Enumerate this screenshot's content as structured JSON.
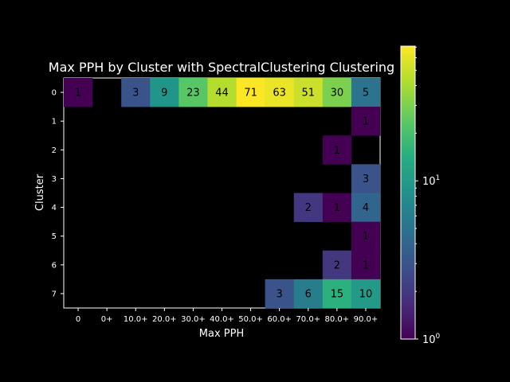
{
  "chart_data": {
    "type": "heatmap",
    "title": "Max PPH by Cluster with SpectralClustering Clustering",
    "xlabel": "Max PPH",
    "ylabel": "Cluster",
    "x_categories": [
      "0",
      "0+",
      "10.0+",
      "20.0+",
      "30.0+",
      "40.0+",
      "50.0+",
      "60.0+",
      "70.0+",
      "80.0+",
      "90.0+"
    ],
    "y_categories": [
      "0",
      "1",
      "2",
      "3",
      "4",
      "5",
      "6",
      "7"
    ],
    "values": [
      [
        1,
        null,
        3,
        9,
        23,
        44,
        71,
        63,
        51,
        30,
        5
      ],
      [
        null,
        null,
        null,
        null,
        null,
        null,
        null,
        null,
        null,
        null,
        1
      ],
      [
        null,
        null,
        null,
        null,
        null,
        null,
        null,
        null,
        null,
        1,
        null
      ],
      [
        null,
        null,
        null,
        null,
        null,
        null,
        null,
        null,
        null,
        null,
        3
      ],
      [
        null,
        null,
        null,
        null,
        null,
        null,
        null,
        null,
        2,
        1,
        4
      ],
      [
        null,
        null,
        null,
        null,
        null,
        null,
        null,
        null,
        null,
        null,
        1
      ],
      [
        null,
        null,
        null,
        null,
        null,
        null,
        null,
        null,
        null,
        2,
        1
      ],
      [
        null,
        null,
        null,
        null,
        null,
        null,
        null,
        3,
        6,
        15,
        10
      ]
    ],
    "color_scale": "log",
    "colormap": "viridis",
    "color_range": [
      1,
      71
    ],
    "colorbar": {
      "ticks": [
        {
          "value": 1,
          "base": "10",
          "exp": "0"
        },
        {
          "value": 10,
          "base": "10",
          "exp": "1"
        }
      ]
    },
    "grid": false,
    "legend": "colorbar-right"
  }
}
